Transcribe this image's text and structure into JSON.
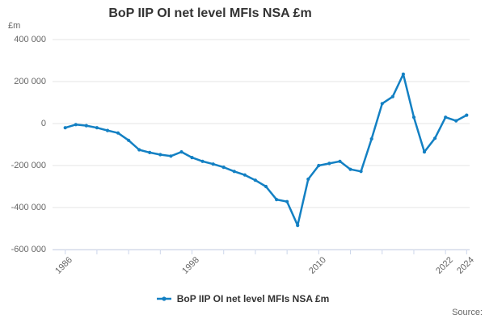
{
  "chart_data": {
    "type": "line",
    "title": "BoP IIP OI net level MFIs NSA £m",
    "unit_label": "£m",
    "xlabel": "",
    "ylabel": "£m",
    "ylim": [
      -600000,
      400000
    ],
    "grid": true,
    "legend_position": "bottom",
    "series": [
      {
        "name": "BoP IIP OI net level MFIs NSA £m",
        "color": "#1380c3",
        "years": [
          1986,
          1987,
          1988,
          1989,
          1990,
          1991,
          1992,
          1993,
          1994,
          1995,
          1996,
          1997,
          1998,
          1999,
          2000,
          2001,
          2002,
          2003,
          2004,
          2005,
          2006,
          2007,
          2008,
          2009,
          2010,
          2011,
          2012,
          2013,
          2014,
          2015,
          2016,
          2017,
          2018,
          2019,
          2020,
          2021,
          2022,
          2023,
          2024
        ],
        "values": [
          -20000,
          -5000,
          -10000,
          -20000,
          -33000,
          -45000,
          -80000,
          -125000,
          -138000,
          -148000,
          -155000,
          -135000,
          -162000,
          -180000,
          -193000,
          -208000,
          -228000,
          -245000,
          -270000,
          -300000,
          -362000,
          -372000,
          -485000,
          -265000,
          -200000,
          -190000,
          -180000,
          -218000,
          -228000,
          -73000,
          95000,
          128000,
          235000,
          30000,
          -135000,
          -70000,
          30000,
          13000,
          40000
        ]
      }
    ],
    "x_axis": {
      "tick_years": [
        1986,
        1989,
        1992,
        1995,
        1998,
        2001,
        2004,
        2007,
        2010,
        2013,
        2016,
        2019,
        2022,
        2024
      ],
      "labeled_ticks": [
        1986,
        1998,
        2010,
        2022,
        2024
      ]
    },
    "y_axis": {
      "ticks": [
        {
          "value": 400000,
          "label": "400 000"
        },
        {
          "value": 200000,
          "label": "200 000"
        },
        {
          "value": 0,
          "label": "0"
        },
        {
          "value": -200000,
          "label": "-200 000"
        },
        {
          "value": -400000,
          "label": "-400 000"
        },
        {
          "value": -600000,
          "label": "-600 000"
        }
      ]
    }
  },
  "legend": {
    "label": "BoP IIP OI net level MFIs NSA £m"
  },
  "source_label": "Source:",
  "colors": {
    "line": "#1380c3",
    "axis": "#ccd6eb",
    "gridline": "#e6e6e6",
    "muted_text": "#666666",
    "title_text": "#333333"
  }
}
